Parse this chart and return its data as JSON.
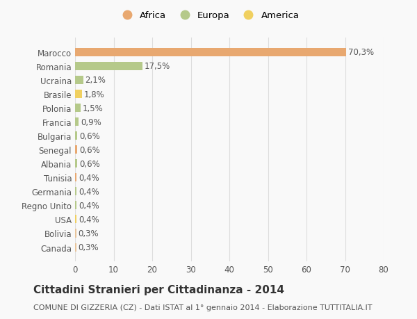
{
  "categories": [
    "Canada",
    "Bolivia",
    "USA",
    "Regno Unito",
    "Germania",
    "Tunisia",
    "Albania",
    "Senegal",
    "Bulgaria",
    "Francia",
    "Polonia",
    "Brasile",
    "Ucraina",
    "Romania",
    "Marocco"
  ],
  "values": [
    0.3,
    0.3,
    0.4,
    0.4,
    0.4,
    0.4,
    0.6,
    0.6,
    0.6,
    0.9,
    1.5,
    1.8,
    2.1,
    17.5,
    70.3
  ],
  "labels": [
    "0,3%",
    "0,3%",
    "0,4%",
    "0,4%",
    "0,4%",
    "0,4%",
    "0,6%",
    "0,6%",
    "0,6%",
    "0,9%",
    "1,5%",
    "1,8%",
    "2,1%",
    "17,5%",
    "70,3%"
  ],
  "colors": [
    "#e8c49a",
    "#e8c49a",
    "#f0d060",
    "#b5c98a",
    "#b5c98a",
    "#e8a870",
    "#b5c98a",
    "#e8a870",
    "#b5c98a",
    "#b5c98a",
    "#b5c98a",
    "#f0d060",
    "#b5c98a",
    "#b5c98a",
    "#e8a870"
  ],
  "legend_labels": [
    "Africa",
    "Europa",
    "America"
  ],
  "legend_colors": [
    "#e8a870",
    "#b5c98a",
    "#f0d060"
  ],
  "title": "Cittadini Stranieri per Cittadinanza - 2014",
  "subtitle": "COMUNE DI GIZZERIA (CZ) - Dati ISTAT al 1° gennaio 2014 - Elaborazione TUTTITALIA.IT",
  "xlim": [
    0,
    80
  ],
  "xticks": [
    0,
    10,
    20,
    30,
    40,
    50,
    60,
    70,
    80
  ],
  "background_color": "#f9f9f9",
  "grid_color": "#dddddd",
  "bar_height": 0.6,
  "label_fontsize": 8.5,
  "tick_fontsize": 8.5,
  "title_fontsize": 11,
  "subtitle_fontsize": 8
}
